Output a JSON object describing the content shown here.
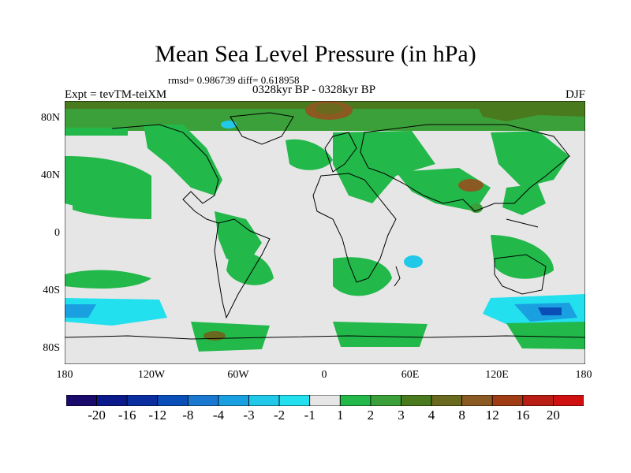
{
  "figure": {
    "title": "Mean Sea Level Pressure (in hPa)",
    "stats": "rmsd= 0.986739 diff= 0.618958",
    "period": "0328kyr BP - 0328kyr BP",
    "experiment": "Expt = tevTM-teiXM",
    "season": "DJF"
  },
  "map": {
    "projection": "cylindrical-equidistant",
    "lon_range": [
      -180,
      180
    ],
    "lat_range": [
      -90,
      90
    ],
    "lat_labels": [
      "80N",
      "40N",
      "0",
      "40S",
      "80S"
    ],
    "lat_values": [
      80,
      40,
      0,
      -40,
      -80
    ],
    "lon_labels": [
      "180",
      "120W",
      "60W",
      "0",
      "60E",
      "120E",
      "180"
    ],
    "lon_values": [
      -180,
      -120,
      -60,
      0,
      60,
      120,
      180
    ],
    "background_color": "#e6e6e6",
    "coastline_color": "#000000"
  },
  "colorbar": {
    "labels": [
      "-20",
      "-16",
      "-12",
      "-8",
      "-4",
      "-3",
      "-2",
      "-1",
      "1",
      "2",
      "3",
      "4",
      "8",
      "12",
      "16",
      "20"
    ],
    "colors": [
      "#1a0a6b",
      "#0a1a8a",
      "#0a2ea0",
      "#0a4fb8",
      "#1a78d0",
      "#1aa0e0",
      "#22c8e8",
      "#22e0ee",
      "#e6e6e6",
      "#22b84a",
      "#3ca03a",
      "#4a7a1e",
      "#6a6a1e",
      "#8a5a22",
      "#a03c14",
      "#b81e14",
      "#d01010"
    ]
  }
}
